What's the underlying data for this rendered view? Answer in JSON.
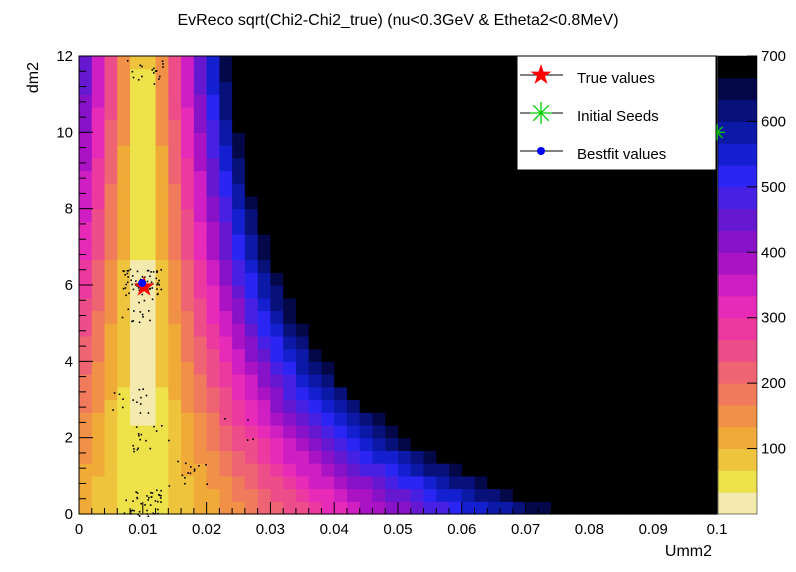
{
  "chart_data": {
    "type": "heatmap",
    "title": "EvReco sqrt(Chi2-Chi2_true) (nu<0.3GeV & Etheta2<0.8MeV)",
    "xlabel": "Umm2",
    "ylabel": "dm2",
    "xlim": [
      0,
      0.1
    ],
    "ylim": [
      0,
      12
    ],
    "x_ticks": [
      "0",
      "0.01",
      "0.02",
      "0.03",
      "0.04",
      "0.05",
      "0.06",
      "0.07",
      "0.08",
      "0.09",
      "0.1"
    ],
    "y_ticks": [
      "0",
      "2",
      "4",
      "6",
      "8",
      "10",
      "12"
    ],
    "colorbar": {
      "range": [
        0,
        700
      ],
      "ticks": [
        "100",
        "200",
        "300",
        "400",
        "500",
        "600",
        "700"
      ],
      "levels": 20,
      "colors": [
        "#f4eab0",
        "#ede24a",
        "#eec43c",
        "#efaa37",
        "#f19047",
        "#f07a5c",
        "#ef6472",
        "#ed4d88",
        "#eb39a0",
        "#e72bb8",
        "#cf1fc3",
        "#a913c3",
        "#8712c8",
        "#6518d0",
        "#4820e3",
        "#2a25f2",
        "#1420d0",
        "#0c18a6",
        "#08107a",
        "#050848",
        "#000000"
      ]
    },
    "minimum": {
      "x": 0.01,
      "y": 6.0
    },
    "legend": {
      "position": "top-right",
      "entries": [
        {
          "label": "True values",
          "color": "#ff0000",
          "marker": "star"
        },
        {
          "label": "Initial Seeds",
          "color": "#00cc00",
          "marker": "asterisk"
        },
        {
          "label": "Bestfit values",
          "color": "#0000ff",
          "marker": "dot"
        }
      ]
    },
    "points": {
      "true_values": {
        "x": 0.0102,
        "y": 5.95
      },
      "bestfit_values": {
        "x": 0.0099,
        "y": 6.05
      },
      "initial_seeds": {
        "x": 0.1,
        "y": 10.0
      }
    },
    "grid": false
  }
}
